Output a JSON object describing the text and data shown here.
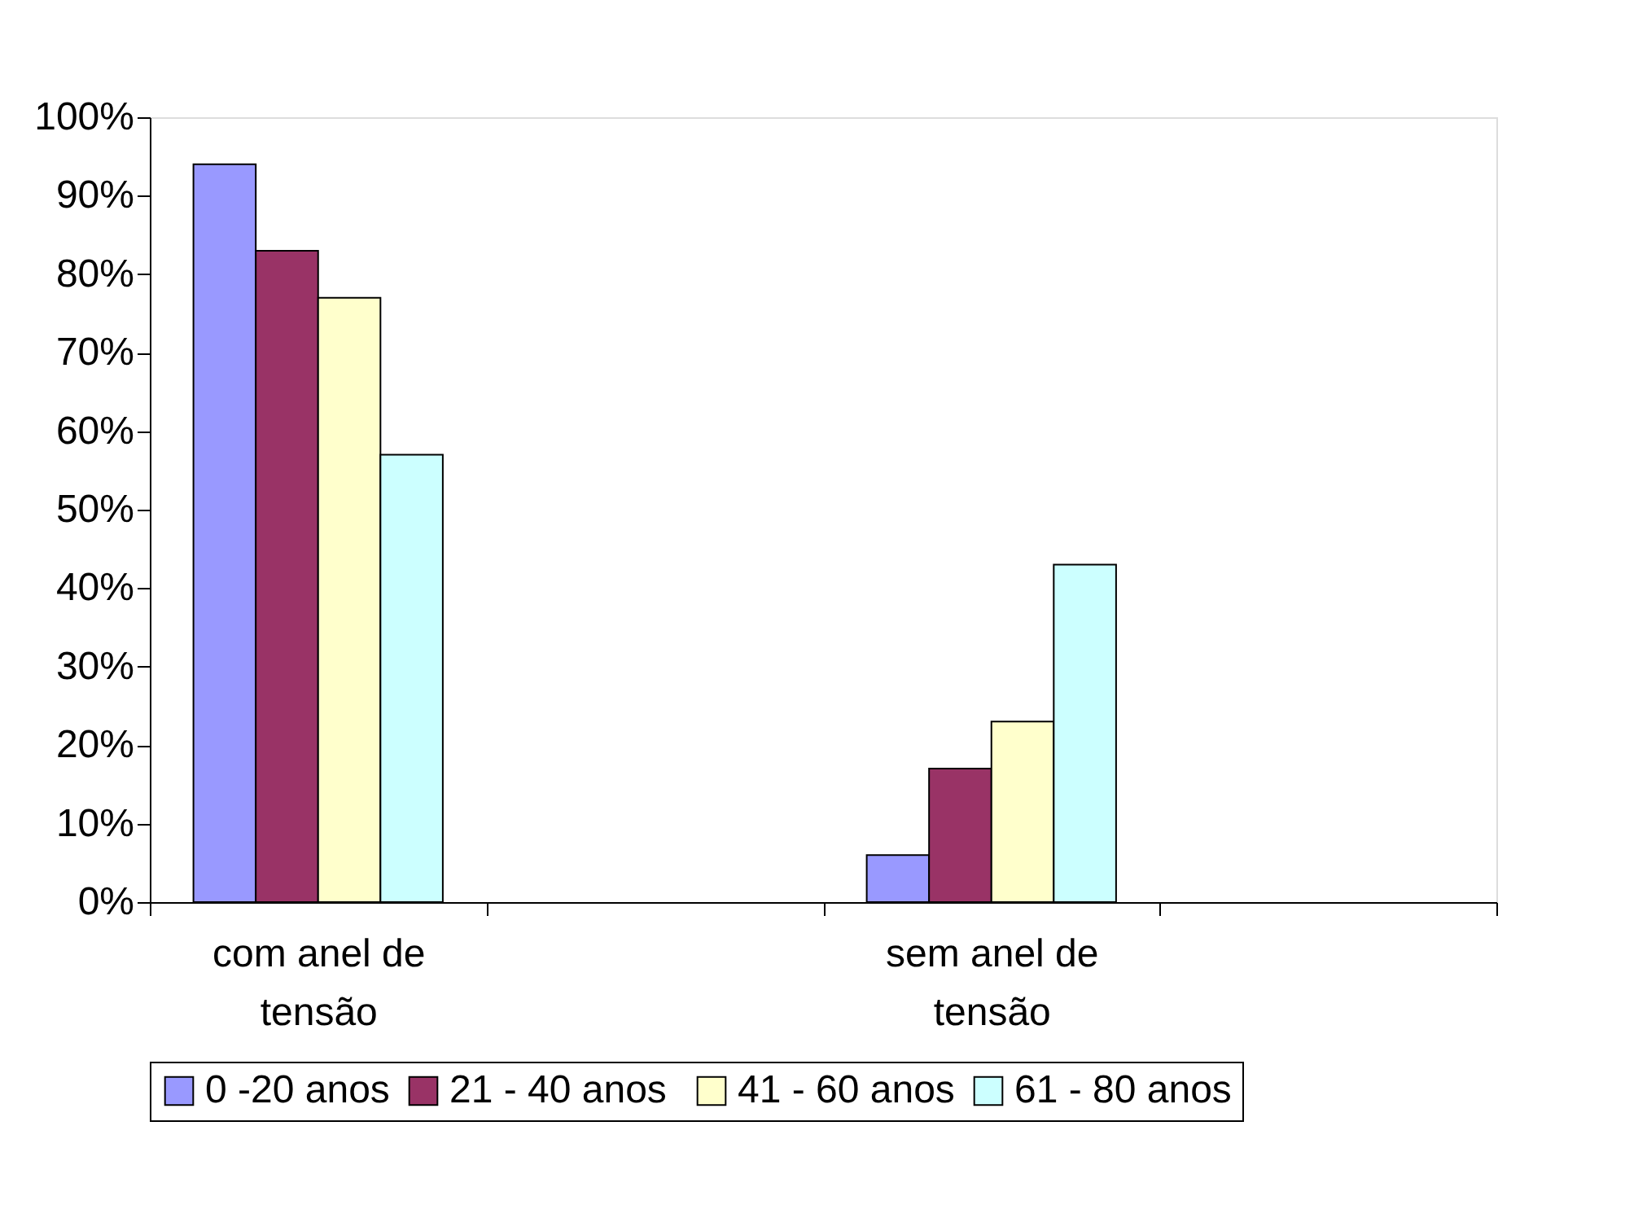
{
  "chart_data": {
    "type": "bar",
    "categories": [
      "com anel de tensão",
      null,
      "sem anel de tensão",
      null
    ],
    "series": [
      {
        "name": "0 -20 anos",
        "color": "#9999ff",
        "values": [
          94,
          null,
          6,
          null
        ]
      },
      {
        "name": "21 - 40  anos",
        "color": "#993366",
        "values": [
          83,
          null,
          17,
          null
        ]
      },
      {
        "name": "41 - 60 anos",
        "color": "#ffffcc",
        "values": [
          77,
          null,
          23,
          null
        ]
      },
      {
        "name": "61 - 80 anos",
        "color": "#ccffff",
        "values": [
          57,
          null,
          43,
          null
        ]
      }
    ],
    "ylim": [
      0,
      100
    ],
    "yticks": [
      {
        "value": 0,
        "label": "0%"
      },
      {
        "value": 10,
        "label": "10%"
      },
      {
        "value": 20,
        "label": "20%"
      },
      {
        "value": 30,
        "label": "30%"
      },
      {
        "value": 40,
        "label": "40%"
      },
      {
        "value": 50,
        "label": "50%"
      },
      {
        "value": 60,
        "label": "60%"
      },
      {
        "value": 70,
        "label": "70%"
      },
      {
        "value": 80,
        "label": "80%"
      },
      {
        "value": 90,
        "label": "90%"
      },
      {
        "value": 100,
        "label": "100%"
      }
    ],
    "grid": false,
    "legend": "bottom"
  }
}
